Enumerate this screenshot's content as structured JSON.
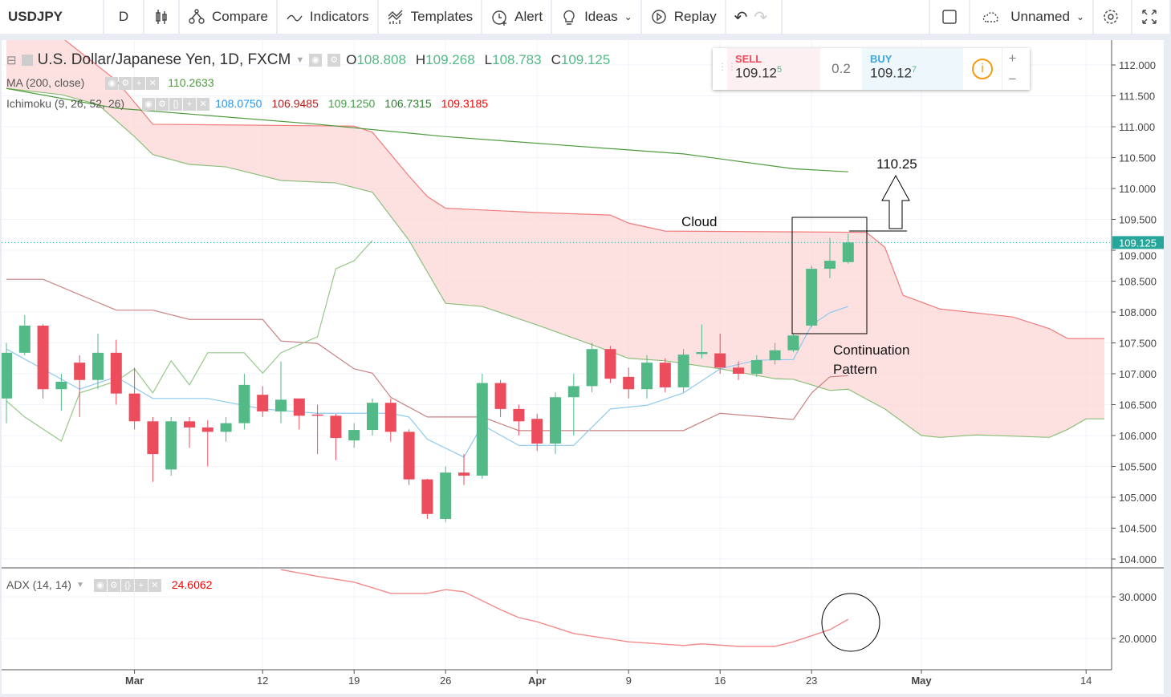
{
  "toolbar": {
    "symbol": "USDJPY",
    "interval": "D",
    "compare": "Compare",
    "indicators": "Indicators",
    "templates": "Templates",
    "alert": "Alert",
    "ideas": "Ideas",
    "replay": "Replay",
    "layout_name": "Unnamed"
  },
  "legend": {
    "title": "U.S. Dollar/Japanese Yen, 1D, FXCM",
    "ohlc": [
      {
        "k": "O",
        "v": "108.808"
      },
      {
        "k": "H",
        "v": "109.268"
      },
      {
        "k": "L",
        "v": "108.783"
      },
      {
        "k": "C",
        "v": "109.125"
      }
    ],
    "ma": {
      "label": "MA (200, close)",
      "value": "110.2633"
    },
    "ichimoku": {
      "label": "Ichimoku (9, 26, 52, 26)",
      "values": [
        "108.0750",
        "106.9485",
        "109.1250",
        "106.7315",
        "109.3185"
      ]
    },
    "adx": {
      "label": "ADX (14, 14)",
      "value": "24.6062"
    }
  },
  "trade": {
    "sell_label": "SELL",
    "sell_price": "109.12",
    "sell_sup": "5",
    "spread": "0.2",
    "buy_label": "BUY",
    "buy_price": "109.12",
    "buy_sup": "7"
  },
  "colors": {
    "up": "#53b987",
    "down": "#eb4d5c",
    "cloud": "#fcd6d6",
    "span_b": "#f07c7c",
    "span_a": "#8cbf7c",
    "tenkan": "#8ec9ef",
    "kijun": "#c98282",
    "chikou": "#96c98a",
    "ma": "#4e9a3c",
    "adx": "#f58a8a",
    "last": "#26a69a"
  },
  "chart_data": {
    "type": "candlestick",
    "price_ticks": [
      "112.000",
      "111.500",
      "111.000",
      "110.500",
      "110.000",
      "109.500",
      "109.000",
      "108.500",
      "108.000",
      "107.500",
      "107.000",
      "106.500",
      "106.000",
      "105.500",
      "105.000",
      "104.500",
      "104.000"
    ],
    "ylim": [
      104,
      112
    ],
    "last_price": "109.125",
    "adx_ticks": [
      "30.0000",
      "20.0000"
    ],
    "x_ticks": [
      {
        "date": "2018-03-01",
        "label": "Mar",
        "bold": true
      },
      {
        "date": "2018-03-12",
        "label": "12"
      },
      {
        "date": "2018-03-19",
        "label": "19"
      },
      {
        "date": "2018-03-26",
        "label": "26"
      },
      {
        "date": "2018-04-02",
        "label": "Apr",
        "bold": true
      },
      {
        "date": "2018-04-09",
        "label": "9"
      },
      {
        "date": "2018-04-16",
        "label": "16"
      },
      {
        "date": "2018-04-23",
        "label": "23"
      },
      {
        "date": "2018-05-01",
        "label": "May",
        "bold": true
      },
      {
        "date": "2018-05-14",
        "label": "14"
      }
    ],
    "candles": [
      [
        "2018-02-20",
        106.6,
        107.5,
        106.2,
        107.34
      ],
      [
        "2018-02-21",
        107.34,
        107.95,
        107.3,
        107.78
      ],
      [
        "2018-02-22",
        107.78,
        107.8,
        106.6,
        106.75
      ],
      [
        "2018-02-23",
        106.75,
        107.0,
        106.4,
        106.87
      ],
      [
        "2018-02-26",
        107.18,
        107.3,
        106.3,
        106.9
      ],
      [
        "2018-02-27",
        106.9,
        107.65,
        106.75,
        107.34
      ],
      [
        "2018-02-28",
        107.34,
        107.55,
        106.5,
        106.68
      ],
      [
        "2018-03-01",
        106.68,
        107.1,
        106.1,
        106.23
      ],
      [
        "2018-03-02",
        106.23,
        106.3,
        105.25,
        105.7
      ],
      [
        "2018-03-05",
        105.45,
        106.3,
        105.35,
        106.23
      ],
      [
        "2018-03-06",
        106.23,
        106.3,
        105.8,
        106.13
      ],
      [
        "2018-03-07",
        106.13,
        106.25,
        105.5,
        106.06
      ],
      [
        "2018-03-08",
        106.06,
        106.3,
        105.9,
        106.2
      ],
      [
        "2018-03-09",
        106.2,
        107.0,
        106.1,
        106.82
      ],
      [
        "2018-03-12",
        106.66,
        106.8,
        106.3,
        106.39
      ],
      [
        "2018-03-13",
        106.39,
        107.2,
        106.2,
        106.58
      ],
      [
        "2018-03-14",
        106.6,
        106.6,
        106.1,
        106.32
      ],
      [
        "2018-03-15",
        106.34,
        106.5,
        105.7,
        106.32
      ],
      [
        "2018-03-16",
        106.32,
        106.35,
        105.6,
        105.96
      ],
      [
        "2018-03-19",
        105.92,
        106.2,
        105.8,
        106.09
      ],
      [
        "2018-03-20",
        106.09,
        106.6,
        106.0,
        106.53
      ],
      [
        "2018-03-21",
        106.53,
        106.6,
        105.9,
        106.06
      ],
      [
        "2018-03-22",
        106.06,
        106.1,
        105.2,
        105.29
      ],
      [
        "2018-03-23",
        105.29,
        105.3,
        104.65,
        104.73
      ],
      [
        "2018-03-26",
        104.65,
        105.5,
        104.6,
        105.4
      ],
      [
        "2018-03-27",
        105.4,
        105.7,
        105.2,
        105.35
      ],
      [
        "2018-03-28",
        105.35,
        107.0,
        105.3,
        106.85
      ],
      [
        "2018-03-29",
        106.85,
        106.9,
        106.3,
        106.43
      ],
      [
        "2018-03-30",
        106.43,
        106.5,
        106.0,
        106.23
      ],
      [
        "2018-04-02",
        106.27,
        106.35,
        105.75,
        105.87
      ],
      [
        "2018-04-03",
        105.87,
        106.7,
        105.7,
        106.62
      ],
      [
        "2018-04-04",
        106.62,
        107.0,
        106.0,
        106.8
      ],
      [
        "2018-04-05",
        106.8,
        107.5,
        106.7,
        107.4
      ],
      [
        "2018-04-06",
        107.4,
        107.45,
        106.85,
        106.92
      ],
      [
        "2018-04-09",
        106.95,
        107.1,
        106.6,
        106.75
      ],
      [
        "2018-04-10",
        106.75,
        107.3,
        106.6,
        107.18
      ],
      [
        "2018-04-11",
        107.18,
        107.25,
        106.7,
        106.78
      ],
      [
        "2018-04-12",
        106.78,
        107.4,
        106.7,
        107.31
      ],
      [
        "2018-04-13",
        107.32,
        107.8,
        107.25,
        107.35
      ],
      [
        "2018-04-16",
        107.33,
        107.65,
        107.0,
        107.1
      ],
      [
        "2018-04-17",
        107.1,
        107.2,
        106.9,
        107.0
      ],
      [
        "2018-04-18",
        107.0,
        107.3,
        106.95,
        107.22
      ],
      [
        "2018-04-19",
        107.22,
        107.5,
        107.15,
        107.38
      ],
      [
        "2018-04-20",
        107.38,
        107.65,
        107.35,
        107.62
      ],
      [
        "2018-04-23",
        107.78,
        108.75,
        107.75,
        108.7
      ],
      [
        "2018-04-24",
        108.7,
        109.2,
        108.55,
        108.83
      ],
      [
        "2018-04-25",
        108.808,
        109.268,
        108.783,
        109.125
      ]
    ],
    "lines": {
      "span_b": [
        [
          "2018-02-20",
          112.6
        ],
        [
          "2018-02-23",
          112.45
        ],
        [
          "2018-02-28",
          111.75
        ],
        [
          "2018-03-02",
          111.04
        ],
        [
          "2018-03-19",
          111.01
        ],
        [
          "2018-03-20",
          110.91
        ],
        [
          "2018-03-22",
          110.2
        ],
        [
          "2018-03-23",
          109.87
        ],
        [
          "2018-03-26",
          109.68
        ],
        [
          "2018-04-02",
          109.61
        ],
        [
          "2018-04-06",
          109.57
        ],
        [
          "2018-04-09",
          109.44
        ],
        [
          "2018-04-11",
          109.31
        ],
        [
          "2018-04-26",
          109.29
        ],
        [
          "2018-04-27",
          109.05
        ],
        [
          "2018-04-30",
          108.27
        ],
        [
          "2018-05-02",
          108.05
        ],
        [
          "2018-05-08",
          107.92
        ],
        [
          "2018-05-10",
          107.73
        ],
        [
          "2018-05-11",
          107.57
        ],
        [
          "2018-05-15",
          107.57
        ]
      ],
      "span_a": [
        [
          "2018-02-20",
          111.62
        ],
        [
          "2018-02-23",
          111.52
        ],
        [
          "2018-02-27",
          111.36
        ],
        [
          "2018-03-01",
          110.84
        ],
        [
          "2018-03-02",
          110.55
        ],
        [
          "2018-03-06",
          110.39
        ],
        [
          "2018-03-08",
          110.35
        ],
        [
          "2018-03-13",
          110.13
        ],
        [
          "2018-03-16",
          110.09
        ],
        [
          "2018-03-20",
          109.94
        ],
        [
          "2018-03-22",
          109.16
        ],
        [
          "2018-03-26",
          108.14
        ],
        [
          "2018-03-28",
          108.09
        ],
        [
          "2018-04-02",
          107.79
        ],
        [
          "2018-04-05",
          107.47
        ],
        [
          "2018-04-09",
          107.25
        ],
        [
          "2018-04-11",
          107.21
        ],
        [
          "2018-04-16",
          107.08
        ],
        [
          "2018-04-19",
          106.92
        ],
        [
          "2018-04-20",
          106.91
        ],
        [
          "2018-04-24",
          106.73
        ],
        [
          "2018-04-25",
          106.75
        ],
        [
          "2018-04-27",
          106.43
        ],
        [
          "2018-05-01",
          106.0
        ],
        [
          "2018-05-02",
          105.97
        ],
        [
          "2018-05-04",
          106.01
        ],
        [
          "2018-05-10",
          105.97
        ],
        [
          "2018-05-11",
          106.1
        ],
        [
          "2018-05-14",
          106.27
        ],
        [
          "2018-05-15",
          106.27
        ]
      ],
      "tenkan": [
        [
          "2018-02-20",
          107.4
        ],
        [
          "2018-02-26",
          106.75
        ],
        [
          "2018-02-28",
          106.95
        ],
        [
          "2018-03-02",
          106.6
        ],
        [
          "2018-03-07",
          106.6
        ],
        [
          "2018-03-12",
          106.43
        ],
        [
          "2018-03-15",
          106.36
        ],
        [
          "2018-03-21",
          106.36
        ],
        [
          "2018-03-22",
          106.3
        ],
        [
          "2018-03-23",
          105.94
        ],
        [
          "2018-03-27",
          105.65
        ],
        [
          "2018-03-28",
          106.17
        ],
        [
          "2018-03-30",
          105.84
        ],
        [
          "2018-04-04",
          105.84
        ],
        [
          "2018-04-06",
          106.43
        ],
        [
          "2018-04-10",
          106.49
        ],
        [
          "2018-04-12",
          106.69
        ],
        [
          "2018-04-16",
          107.08
        ],
        [
          "2018-04-18",
          107.22
        ],
        [
          "2018-04-20",
          107.23
        ],
        [
          "2018-04-23",
          107.79
        ],
        [
          "2018-04-24",
          107.99
        ],
        [
          "2018-04-25",
          108.09
        ]
      ],
      "kijun": [
        [
          "2018-02-20",
          108.53
        ],
        [
          "2018-02-22",
          108.53
        ],
        [
          "2018-02-28",
          108.03
        ],
        [
          "2018-03-02",
          108.03
        ],
        [
          "2018-03-06",
          107.88
        ],
        [
          "2018-03-12",
          107.88
        ],
        [
          "2018-03-13",
          107.53
        ],
        [
          "2018-03-15",
          107.49
        ],
        [
          "2018-03-19",
          107.08
        ],
        [
          "2018-03-20",
          107.01
        ],
        [
          "2018-03-21",
          106.62
        ],
        [
          "2018-03-23",
          106.3
        ],
        [
          "2018-03-28",
          106.3
        ],
        [
          "2018-03-30",
          106.08
        ],
        [
          "2018-04-12",
          106.08
        ],
        [
          "2018-04-16",
          106.36
        ],
        [
          "2018-04-20",
          106.26
        ],
        [
          "2018-04-23",
          106.69
        ],
        [
          "2018-04-24",
          106.95
        ],
        [
          "2018-04-25",
          106.97
        ]
      ],
      "chikou": [
        [
          "2018-02-20",
          106.56
        ],
        [
          "2018-02-21",
          106.3
        ],
        [
          "2018-02-23",
          105.91
        ],
        [
          "2018-02-26",
          106.69
        ],
        [
          "2018-02-28",
          106.88
        ],
        [
          "2018-03-01",
          107.08
        ],
        [
          "2018-03-02",
          106.69
        ],
        [
          "2018-03-05",
          107.21
        ],
        [
          "2018-03-06",
          106.82
        ],
        [
          "2018-03-07",
          107.34
        ],
        [
          "2018-03-09",
          107.34
        ],
        [
          "2018-03-12",
          107.01
        ],
        [
          "2018-03-13",
          107.34
        ],
        [
          "2018-03-14",
          107.47
        ],
        [
          "2018-03-15",
          107.6
        ],
        [
          "2018-03-16",
          108.7
        ],
        [
          "2018-03-19",
          108.83
        ],
        [
          "2018-03-20",
          109.16
        ]
      ],
      "ma200": [
        [
          "2018-02-20",
          111.62
        ],
        [
          "2018-02-28",
          111.3
        ],
        [
          "2018-03-15",
          111.04
        ],
        [
          "2018-03-26",
          110.84
        ],
        [
          "2018-04-03",
          110.71
        ],
        [
          "2018-04-12",
          110.56
        ],
        [
          "2018-04-20",
          110.32
        ],
        [
          "2018-04-25",
          110.27
        ]
      ],
      "adx": [
        [
          "2018-03-13",
          36.5
        ],
        [
          "2018-03-15",
          34.9
        ],
        [
          "2018-03-19",
          33.5
        ],
        [
          "2018-03-21",
          30.8
        ],
        [
          "2018-03-23",
          30.8
        ],
        [
          "2018-03-26",
          31.7
        ],
        [
          "2018-03-27",
          31.2
        ],
        [
          "2018-03-29",
          26.9
        ],
        [
          "2018-03-30",
          25.0
        ],
        [
          "2018-04-02",
          24.0
        ],
        [
          "2018-04-04",
          21.2
        ],
        [
          "2018-04-09",
          19.2
        ],
        [
          "2018-04-12",
          18.3
        ],
        [
          "2018-04-13",
          18.7
        ],
        [
          "2018-04-17",
          18.1
        ],
        [
          "2018-04-19",
          18.1
        ],
        [
          "2018-04-20",
          19.2
        ],
        [
          "2018-04-24",
          22.1
        ],
        [
          "2018-04-25",
          24.6
        ]
      ]
    },
    "annotations": {
      "target": "110.25",
      "cloud": "Cloud",
      "pattern_line1": "Continuation",
      "pattern_line2": "Pattern"
    }
  }
}
